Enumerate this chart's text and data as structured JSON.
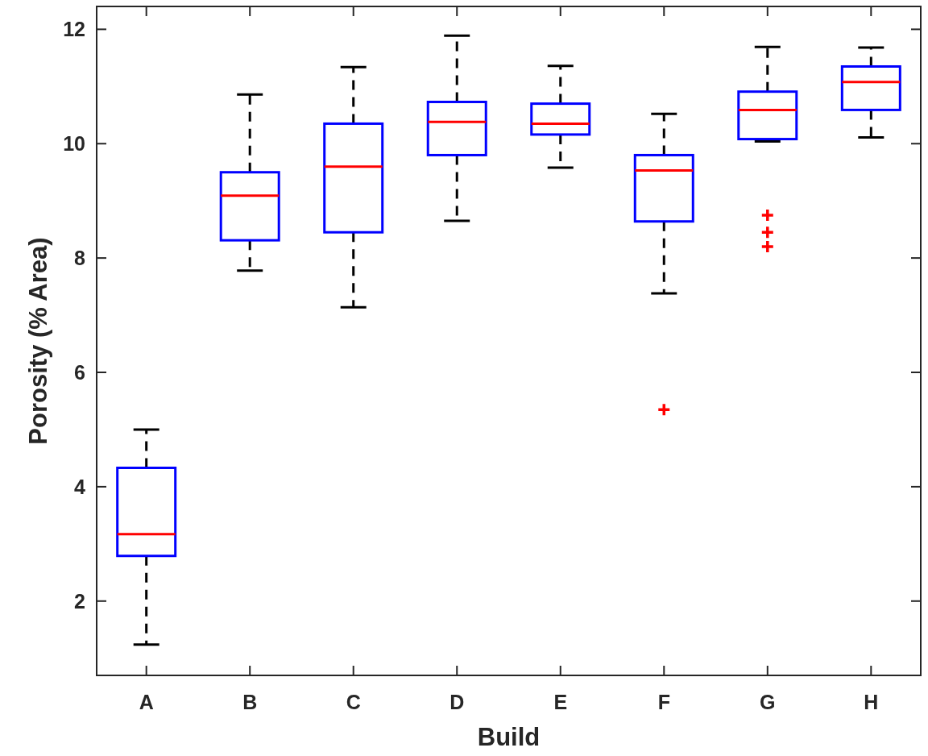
{
  "chart_data": {
    "type": "box",
    "xlabel": "Build",
    "ylabel": "Porosity (% Area)",
    "categories": [
      "A",
      "B",
      "C",
      "D",
      "E",
      "F",
      "G",
      "H"
    ],
    "ylim": [
      0.7,
      12.4
    ],
    "yticks": [
      2,
      4,
      6,
      8,
      10,
      12
    ],
    "grid": false,
    "series": [
      {
        "color": "#0000ff",
        "boxes": [
          {
            "low": 1.24,
            "q1": 2.79,
            "median": 3.17,
            "q3": 4.33,
            "high": 5.0
          },
          {
            "low": 7.78,
            "q1": 8.31,
            "median": 9.09,
            "q3": 9.5,
            "high": 10.86
          },
          {
            "low": 7.14,
            "q1": 8.45,
            "median": 9.6,
            "q3": 10.35,
            "high": 11.34
          },
          {
            "low": 8.65,
            "q1": 9.8,
            "median": 10.38,
            "q3": 10.73,
            "high": 11.89
          },
          {
            "low": 9.58,
            "q1": 10.16,
            "median": 10.35,
            "q3": 10.7,
            "high": 11.36
          },
          {
            "low": 7.38,
            "q1": 8.64,
            "median": 9.53,
            "q3": 9.8,
            "high": 10.52,
            "outliers": [
              5.35
            ]
          },
          {
            "low": 10.04,
            "q1": 10.08,
            "median": 10.59,
            "q3": 10.91,
            "high": 11.69,
            "outliers": [
              8.75,
              8.45,
              8.2
            ]
          },
          {
            "low": 10.11,
            "q1": 10.59,
            "median": 11.08,
            "q3": 11.35,
            "high": 11.68
          }
        ]
      }
    ]
  }
}
